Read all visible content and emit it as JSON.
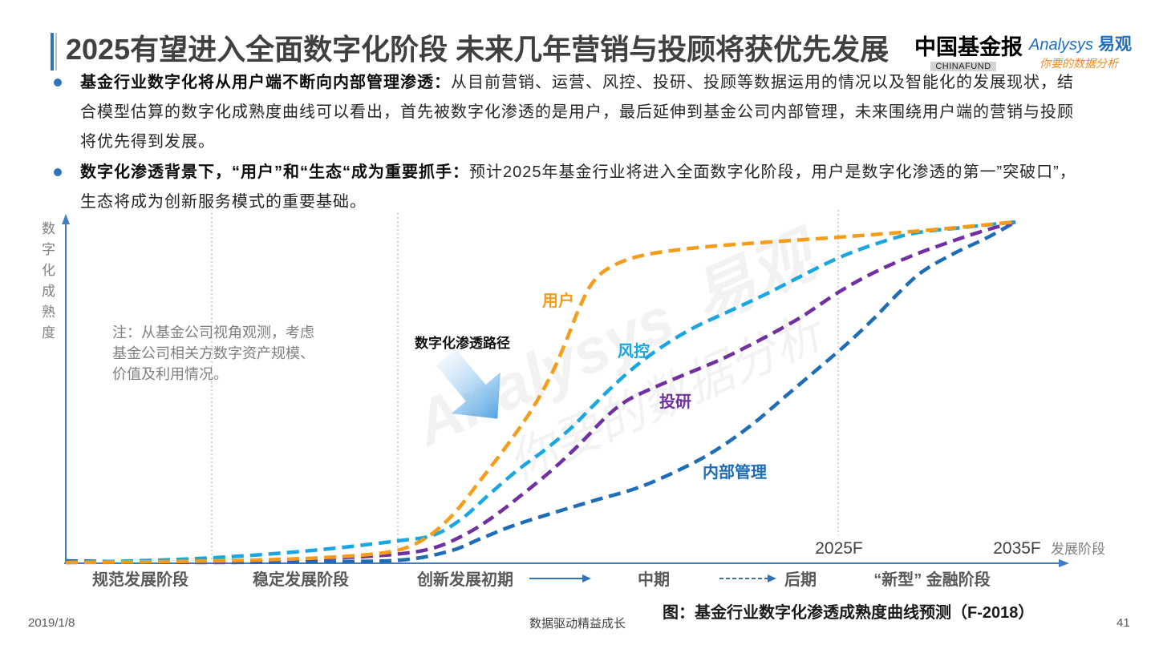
{
  "slide": {
    "title": "2025有望进入全面数字化阶段 未来几年营销与投顾将获优先发展",
    "logos": {
      "chinafund_cn": "中国基金报",
      "chinafund_en": "CHINAFUND",
      "analysys_en": "Analysys",
      "analysys_cn": "易观",
      "analysys_slogan": "你要的数据分析"
    },
    "bullets": [
      {
        "bold": "基金行业数字化将从用户端不断向内部管理渗透：",
        "text": "从目前营销、运营、风控、投研、投顾等数据运用的情况以及智能化的发展现状，结合模型估算的数字化成熟度曲线可以看出，首先被数字化渗透的是用户，最后延伸到基金公司内部管理，未来围绕用户端的营销与投顾将优先得到发展。"
      },
      {
        "bold": "数字化渗透背景下，“用户”和“生态“成为重要抓手：",
        "text": "预计2025年基金行业将进入全面数字化阶段，用户是数字化渗透的第一”突破口”，生态将成为创新服务模式的重要基础。"
      }
    ],
    "footer": {
      "date": "2019/1/8",
      "slogan": "数据驱动精益成长",
      "page_number": "41"
    }
  },
  "watermark": {
    "brand_en": "Analysys",
    "brand_cn": "易观",
    "slogan": "你要的数据分析"
  },
  "colors": {
    "accent": "#2e75b6",
    "axis": "#3f7dc4",
    "title": "#404040",
    "guide": "#a6a6a6"
  },
  "chart_data": {
    "type": "line",
    "ylabel": "数字化成熟度",
    "xlabel": "发展阶段",
    "x_ticks": [
      "2025F",
      "2035F"
    ],
    "stages": [
      "规范发展阶段",
      "稳定发展阶段",
      "创新发展初期",
      "中期",
      "后期",
      "“新型” 金融阶段"
    ],
    "series": [
      {
        "name": "用户",
        "color": "#f59c1a"
      },
      {
        "name": "风控",
        "color": "#1aa7e1"
      },
      {
        "name": "投研",
        "color": "#7030a0"
      },
      {
        "name": "内部管理",
        "color": "#1f6db6"
      }
    ],
    "annotations": {
      "path_label": "数字化渗透路径",
      "note_lines": [
        "注：从基金公司视角观测，考虑",
        "基金公司相关方数字资产规模、",
        "价值及利用情况。"
      ]
    },
    "caption": "图：基金行业数字化渗透成熟度曲线预测（F-2018）",
    "grid": false
  }
}
